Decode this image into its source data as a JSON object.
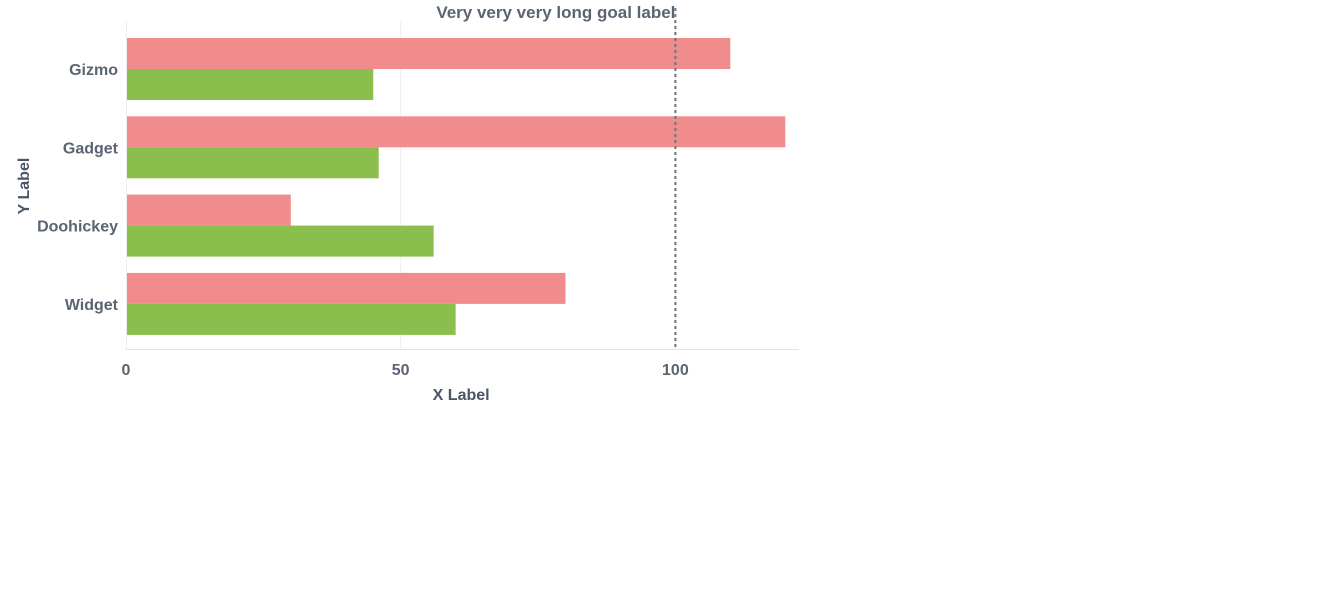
{
  "chart_data": {
    "type": "bar",
    "orientation": "horizontal",
    "categories": [
      "Gizmo",
      "Gadget",
      "Doohickey",
      "Widget"
    ],
    "series": [
      {
        "color": "#f08c8c",
        "values": [
          110,
          120,
          30,
          80
        ]
      },
      {
        "color": "#8bbf4d",
        "values": [
          45,
          46,
          56,
          60
        ]
      }
    ],
    "xlabel": "X Label",
    "ylabel": "Y Label",
    "xlim": [
      0,
      122.5
    ],
    "xticks": [
      0,
      50,
      100
    ],
    "goal": {
      "value": 100,
      "label": "Very very very long goal label"
    },
    "grid": true,
    "legend": "none"
  }
}
